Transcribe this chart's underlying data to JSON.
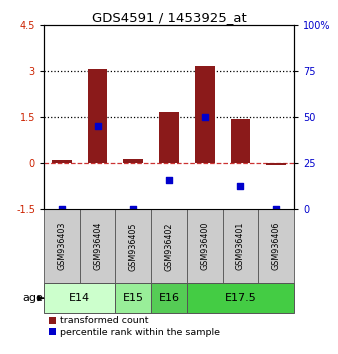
{
  "title": "GDS4591 / 1453925_at",
  "samples": [
    "GSM936403",
    "GSM936404",
    "GSM936405",
    "GSM936402",
    "GSM936400",
    "GSM936401",
    "GSM936406"
  ],
  "red_values": [
    0.1,
    3.07,
    0.15,
    1.65,
    3.15,
    1.45,
    -0.05
  ],
  "blue_raw": [
    -1.5,
    1.2,
    -1.5,
    -0.55,
    1.5,
    -0.75,
    -1.5
  ],
  "left_ylim": [
    -1.5,
    4.5
  ],
  "right_ylim": [
    0,
    100
  ],
  "left_yticks": [
    -1.5,
    0,
    1.5,
    3,
    4.5
  ],
  "left_yticklabels": [
    "-1.5",
    "0",
    "1.5",
    "3",
    "4.5"
  ],
  "right_yticks": [
    0,
    25,
    50,
    75,
    100
  ],
  "right_yticklabels": [
    "0",
    "25",
    "50",
    "75",
    "100%"
  ],
  "hline_dashed": 0,
  "hlines_dotted": [
    1.5,
    3.0
  ],
  "age_groups": [
    {
      "label": "E14",
      "start": 0,
      "end": 2,
      "color": "#ccffcc"
    },
    {
      "label": "E15",
      "start": 2,
      "end": 3,
      "color": "#99ee99"
    },
    {
      "label": "E16",
      "start": 3,
      "end": 4,
      "color": "#55cc55"
    },
    {
      "label": "E17.5",
      "start": 4,
      "end": 7,
      "color": "#44cc44"
    }
  ],
  "bar_color": "#8b1a1a",
  "dot_color": "#0000cc",
  "bar_width": 0.55,
  "legend_red": "transformed count",
  "legend_blue": "percentile rank within the sample",
  "age_label": "age",
  "sample_box_color": "#cccccc",
  "sample_box_edge": "#555555"
}
